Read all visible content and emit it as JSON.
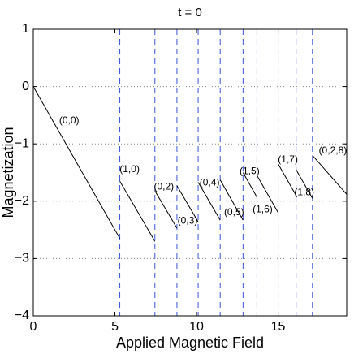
{
  "chart_data": {
    "type": "line",
    "title": "t = 0",
    "xlabel": "Applied Magnetic Field",
    "ylabel": "Magnetization",
    "xlim": [
      0,
      19.2
    ],
    "ylim": [
      -4,
      1
    ],
    "xticks": [
      "0",
      "5",
      "10",
      "15"
    ],
    "xtick_values": [
      0,
      5,
      10,
      15
    ],
    "yticks": [
      "1",
      "0",
      "−1",
      "−2",
      "−3",
      "−4"
    ],
    "ytick_values": [
      1,
      0,
      -1,
      -2,
      -3,
      -4
    ],
    "grid": "horizontal dotted",
    "dashed_verticals_x": [
      5.3,
      7.45,
      8.8,
      10.1,
      11.45,
      12.85,
      13.7,
      15.0,
      16.1,
      17.1
    ],
    "segments": [
      {
        "label": "(0,0)",
        "x": [
          0,
          5.3
        ],
        "y": [
          0,
          -2.65
        ],
        "label_x": 2.2,
        "label_y": -0.6
      },
      {
        "label": "(1,0)",
        "x": [
          5.3,
          7.45
        ],
        "y": [
          -1.65,
          -2.7
        ],
        "label_x": 5.9,
        "label_y": -1.45
      },
      {
        "label": "(0,2)",
        "x": [
          7.45,
          8.8
        ],
        "y": [
          -1.82,
          -2.47
        ],
        "label_x": 8.0,
        "label_y": -1.75
      },
      {
        "label": "(0,3)",
        "x": [
          8.8,
          10.1
        ],
        "y": [
          -1.73,
          -2.36
        ],
        "label_x": 9.45,
        "label_y": -2.35
      },
      {
        "label": "(0,4)",
        "x": [
          10.1,
          11.45
        ],
        "y": [
          -1.67,
          -2.33
        ],
        "label_x": 10.8,
        "label_y": -1.68
      },
      {
        "label": "(0,5)",
        "x": [
          11.45,
          12.85
        ],
        "y": [
          -1.63,
          -2.33
        ],
        "label_x": 12.3,
        "label_y": -2.2
      },
      {
        "label": "(1,5)",
        "x": [
          12.85,
          13.7
        ],
        "y": [
          -1.5,
          -1.93
        ],
        "label_x": 13.25,
        "label_y": -1.48
      },
      {
        "label": "(1,6)",
        "x": [
          13.7,
          15.0
        ],
        "y": [
          -1.55,
          -2.2
        ],
        "label_x": 14.05,
        "label_y": -2.15
      },
      {
        "label": "(1,7)",
        "x": [
          15.0,
          16.1
        ],
        "y": [
          -1.35,
          -1.9
        ],
        "label_x": 15.6,
        "label_y": -1.28
      },
      {
        "label": "(1,8)",
        "x": [
          16.1,
          17.1
        ],
        "y": [
          -1.45,
          -1.95
        ],
        "label_x": 16.6,
        "label_y": -1.85
      },
      {
        "label": "(0,2,8)",
        "x": [
          17.1,
          19.2
        ],
        "y": [
          -1.2,
          -1.88
        ],
        "label_x": 18.35,
        "label_y": -1.12
      }
    ],
    "colors": {
      "segment": "#000000",
      "dashed": "#3a55d6",
      "grid": "#888888",
      "frame": "#000000"
    }
  }
}
